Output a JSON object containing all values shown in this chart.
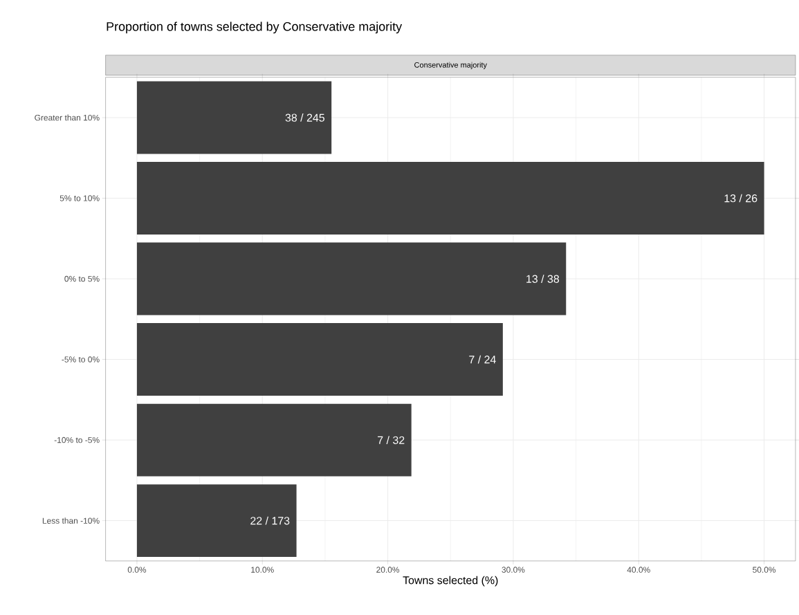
{
  "chart_data": {
    "type": "bar",
    "orientation": "horizontal",
    "title": "Proportion of towns selected by Conservative majority",
    "subtitle": "Conservative majority",
    "xlabel": "Towns selected (%)",
    "categories": [
      "Greater than 10%",
      "5% to 10%",
      "0% to 5%",
      "-5% to 0%",
      "-10% to -5%",
      "Less than -10%"
    ],
    "values": [
      15.51,
      50,
      34.21,
      29.17,
      21.88,
      12.72
    ],
    "annotations": [
      {
        "text": "38 / 245",
        "x": 15.51,
        "y": "Greater than 10%"
      },
      {
        "text": "13 / 26",
        "x": 50,
        "y": "5% to 10%"
      },
      {
        "text": "13 / 38",
        "x": 34.21,
        "y": "0% to 5%"
      },
      {
        "text": "7 / 24",
        "x": 29.17,
        "y": "-5% to 0%"
      },
      {
        "text": "7 / 32",
        "x": 21.88,
        "y": "-10% to -5%"
      },
      {
        "text": "22 / 173",
        "x": 12.72,
        "y": "Less than -10%"
      }
    ],
    "color": "#404040",
    "xlim": [
      -2.5,
      52.5
    ],
    "xticks": [
      {
        "value": 0,
        "label": "0.0%"
      },
      {
        "value": 10,
        "label": "10.0%"
      },
      {
        "value": 20,
        "label": "20.0%"
      },
      {
        "value": 30,
        "label": "30.0%"
      },
      {
        "value": 40,
        "label": "40.0%"
      },
      {
        "value": 50,
        "label": "50.0%"
      }
    ],
    "grid": true
  }
}
